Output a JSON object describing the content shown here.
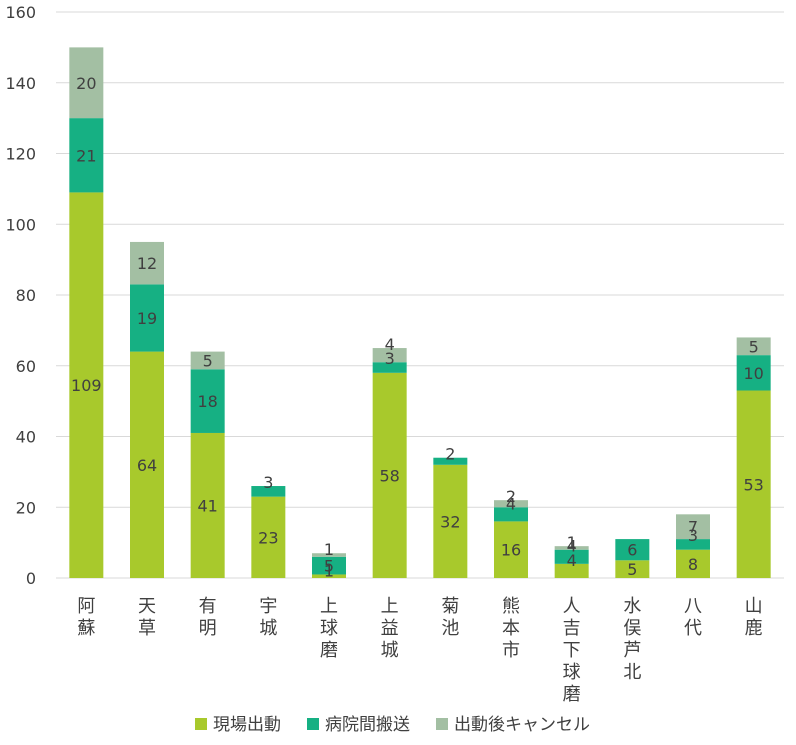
{
  "chart_data": {
    "type": "bar",
    "stacked": true,
    "title": "",
    "xlabel": "",
    "ylabel": "",
    "ylim": [
      0,
      160
    ],
    "yticks": [
      0,
      20,
      40,
      60,
      80,
      100,
      120,
      140,
      160
    ],
    "grid": true,
    "legend_position": "bottom",
    "categories": [
      "阿蘇",
      "天草",
      "有明",
      "宇城",
      "上球磨",
      "上益城",
      "菊池",
      "熊本市",
      "人吉下球磨",
      "水俣芦北",
      "八代",
      "山鹿"
    ],
    "series": [
      {
        "name": "現場出動",
        "color": "#a8c92c",
        "values": [
          109,
          64,
          41,
          23,
          1,
          58,
          32,
          16,
          4,
          5,
          8,
          53
        ]
      },
      {
        "name": "病院間搬送",
        "color": "#16b083",
        "values": [
          21,
          19,
          18,
          3,
          5,
          3,
          2,
          4,
          4,
          6,
          3,
          10
        ]
      },
      {
        "name": "出動後キャンセル",
        "color": "#a3bfa3",
        "values": [
          20,
          12,
          5,
          0,
          1,
          4,
          0,
          2,
          1,
          0,
          7,
          5
        ]
      }
    ]
  }
}
